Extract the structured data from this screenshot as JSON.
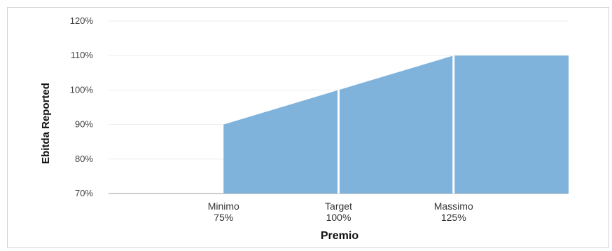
{
  "chart_data": {
    "type": "area",
    "xlabel": "Premio",
    "ylabel": "Ebitda Reported",
    "ylim": [
      70,
      120
    ],
    "y_ticks": [
      "70%",
      "80%",
      "90%",
      "100%",
      "110%",
      "120%"
    ],
    "grid": true,
    "x_categories": [
      {
        "line1": "Minimo",
        "line2": "75%"
      },
      {
        "line1": "Target",
        "line2": "100%"
      },
      {
        "line1": "Massimo",
        "line2": "125%"
      }
    ],
    "series": [
      {
        "x": [
          75,
          100,
          125,
          150
        ],
        "y": [
          90,
          100,
          110,
          110
        ]
      }
    ],
    "colors": {
      "fill": "#7fb3dc",
      "separator": "#ffffff",
      "baseline": "#bfbfbf",
      "grid": "#eeeeee"
    }
  }
}
